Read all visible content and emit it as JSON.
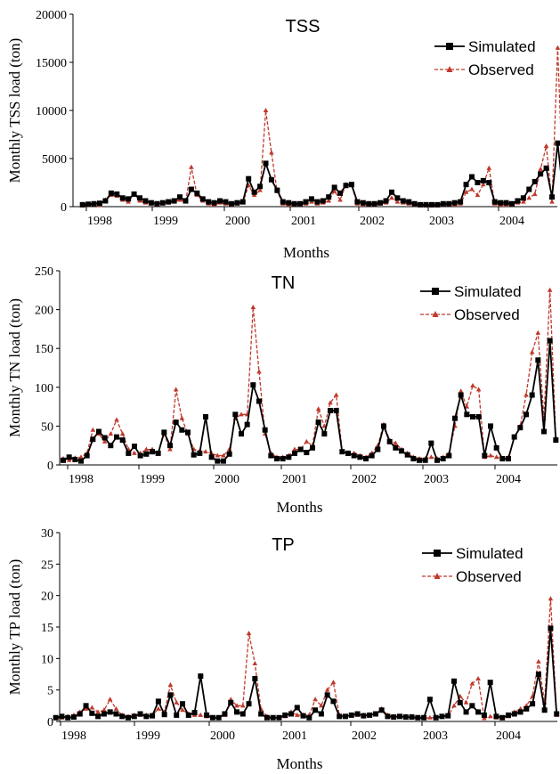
{
  "chart_data": [
    {
      "type": "line",
      "title": "TSS",
      "ylabel": "Monthly  TSS load (ton)",
      "xlabel": "Months",
      "ylim": [
        0,
        20000
      ],
      "yticks": [
        "0",
        "5000",
        "10000",
        "15000",
        "20000"
      ],
      "xticks": [
        "1998",
        "1999",
        "2000",
        "2001",
        "2002",
        "2003",
        "2004"
      ],
      "legend_position": "top-right",
      "x_start": "1997-10",
      "series": [
        {
          "name": "Simulated",
          "color": "#000000",
          "marker": "square",
          "dash": "solid",
          "values": [
            200,
            250,
            300,
            350,
            600,
            1400,
            1300,
            900,
            800,
            1300,
            900,
            600,
            400,
            300,
            400,
            500,
            600,
            1000,
            600,
            1800,
            1400,
            800,
            500,
            400,
            600,
            500,
            300,
            400,
            500,
            2900,
            1500,
            2100,
            4500,
            2800,
            1700,
            500,
            400,
            300,
            300,
            500,
            800,
            500,
            600,
            1000,
            2000,
            1400,
            2200,
            2300,
            500,
            400,
            300,
            300,
            400,
            600,
            1500,
            900,
            600,
            500,
            300,
            200,
            200,
            200,
            200,
            300,
            300,
            400,
            500,
            2300,
            3100,
            2500,
            2700,
            2500,
            500,
            400,
            400,
            300,
            600,
            900,
            1800,
            2600,
            3400,
            4000,
            1000,
            6600,
            1100
          ]
        },
        {
          "name": "Observed",
          "color": "#c0392b",
          "marker": "triangle",
          "dash": "dashed",
          "values": [
            100,
            150,
            200,
            150,
            700,
            1200,
            1100,
            700,
            500,
            1300,
            600,
            400,
            300,
            200,
            300,
            400,
            500,
            700,
            500,
            4100,
            1200,
            600,
            300,
            200,
            400,
            300,
            200,
            300,
            400,
            2200,
            1200,
            1700,
            10000,
            5600,
            1600,
            300,
            200,
            200,
            200,
            300,
            500,
            300,
            400,
            600,
            1600,
            700,
            2300,
            2200,
            300,
            200,
            200,
            200,
            300,
            400,
            900,
            500,
            400,
            300,
            200,
            100,
            100,
            100,
            100,
            200,
            200,
            200,
            300,
            1500,
            1800,
            1200,
            2300,
            4000,
            300,
            200,
            200,
            200,
            400,
            500,
            900,
            1300,
            3900,
            6300,
            500,
            16500,
            400
          ]
        }
      ]
    },
    {
      "type": "line",
      "title": "TN",
      "ylabel": "Monthly  TN load (ton)",
      "xlabel": "Months",
      "ylim": [
        0,
        250
      ],
      "yticks": [
        "0",
        "50",
        "100",
        "150",
        "200",
        "250"
      ],
      "xticks": [
        "1998",
        "1999",
        "2000",
        "2001",
        "2002",
        "2003",
        "2004"
      ],
      "legend_position": "top-right",
      "x_start": "1997-10",
      "series": [
        {
          "name": "Simulated",
          "color": "#000000",
          "marker": "square",
          "dash": "solid",
          "values": [
            6,
            10,
            7,
            5,
            12,
            33,
            43,
            35,
            25,
            36,
            32,
            15,
            24,
            12,
            14,
            17,
            15,
            42,
            25,
            55,
            45,
            42,
            13,
            15,
            62,
            10,
            5,
            5,
            14,
            65,
            40,
            52,
            103,
            82,
            45,
            12,
            8,
            8,
            10,
            15,
            20,
            16,
            22,
            55,
            40,
            70,
            70,
            17,
            15,
            12,
            10,
            8,
            12,
            20,
            50,
            30,
            22,
            18,
            13,
            8,
            6,
            6,
            28,
            6,
            8,
            12,
            60,
            90,
            65,
            62,
            62,
            12,
            50,
            22,
            8,
            8,
            36,
            48,
            65,
            90,
            135,
            43,
            160,
            32
          ]
        },
        {
          "name": "Observed",
          "color": "#c0392b",
          "marker": "triangle",
          "dash": "dashed",
          "values": [
            8,
            6,
            9,
            10,
            15,
            45,
            40,
            30,
            40,
            58,
            40,
            20,
            15,
            15,
            20,
            20,
            15,
            40,
            20,
            97,
            60,
            40,
            20,
            18,
            17,
            15,
            12,
            12,
            20,
            60,
            65,
            65,
            203,
            120,
            40,
            15,
            10,
            10,
            12,
            20,
            20,
            30,
            25,
            72,
            50,
            80,
            90,
            18,
            14,
            15,
            12,
            10,
            15,
            25,
            52,
            32,
            28,
            20,
            15,
            10,
            8,
            8,
            10,
            8,
            10,
            15,
            50,
            95,
            75,
            102,
            97,
            10,
            12,
            10,
            8,
            10,
            35,
            50,
            90,
            145,
            170,
            60,
            225,
            35
          ]
        }
      ]
    },
    {
      "type": "line",
      "title": "TP",
      "ylabel": "Monthly  TP load (ton)",
      "xlabel": "Months",
      "ylim": [
        0,
        30
      ],
      "yticks": [
        "0",
        "5",
        "10",
        "15",
        "20",
        "25",
        "30"
      ],
      "xticks": [
        "1998",
        "1999",
        "2000",
        "2001",
        "2002",
        "2003",
        "2004"
      ],
      "legend_position": "top-right",
      "x_start": "1997-10",
      "series": [
        {
          "name": "Simulated",
          "color": "#000000",
          "marker": "square",
          "dash": "solid",
          "values": [
            0.6,
            0.8,
            0.6,
            0.7,
            1.2,
            2.5,
            1.3,
            0.8,
            1.2,
            1.5,
            1.2,
            0.8,
            0.6,
            0.8,
            1.2,
            0.8,
            0.9,
            3.2,
            1.1,
            4.2,
            1.0,
            2.8,
            1.0,
            1.4,
            7.2,
            1.0,
            0.6,
            0.6,
            1.2,
            3.0,
            1.5,
            1.2,
            2.8,
            6.8,
            1.2,
            0.6,
            0.6,
            0.6,
            1.0,
            1.2,
            2.2,
            0.9,
            0.6,
            1.8,
            1.2,
            4.2,
            3.2,
            0.8,
            0.8,
            1.0,
            1.2,
            0.9,
            1.0,
            1.2,
            1.8,
            0.8,
            0.7,
            0.8,
            0.7,
            0.7,
            0.6,
            0.6,
            3.5,
            0.6,
            0.8,
            0.9,
            6.4,
            3.0,
            1.5,
            2.5,
            1.5,
            1.0,
            6.2,
            0.8,
            0.6,
            1.0,
            1.2,
            1.5,
            2.0,
            2.8,
            7.5,
            1.8,
            14.8,
            1.2
          ]
        },
        {
          "name": "Observed",
          "color": "#c0392b",
          "marker": "triangle",
          "dash": "dashed",
          "values": [
            0.5,
            0.6,
            0.8,
            1.0,
            1.5,
            2.0,
            2.2,
            1.5,
            1.8,
            3.5,
            2.0,
            1.0,
            0.8,
            1.0,
            1.0,
            1.0,
            1.0,
            2.0,
            1.5,
            5.8,
            3.0,
            1.8,
            1.2,
            1.0,
            1.0,
            0.8,
            0.6,
            0.6,
            1.0,
            3.5,
            2.5,
            2.5,
            14.0,
            9.2,
            2.0,
            0.8,
            0.6,
            0.6,
            0.8,
            1.5,
            1.0,
            1.0,
            1.0,
            3.5,
            2.5,
            5.0,
            6.2,
            1.0,
            0.8,
            1.0,
            1.0,
            1.0,
            1.0,
            1.2,
            2.0,
            1.0,
            0.8,
            0.8,
            0.8,
            0.6,
            0.5,
            0.5,
            0.6,
            0.6,
            0.8,
            0.8,
            2.5,
            4.0,
            3.0,
            6.0,
            6.8,
            0.5,
            0.8,
            0.6,
            0.6,
            0.8,
            1.5,
            2.0,
            2.5,
            4.0,
            9.5,
            3.0,
            19.5,
            1.0
          ]
        }
      ]
    }
  ]
}
